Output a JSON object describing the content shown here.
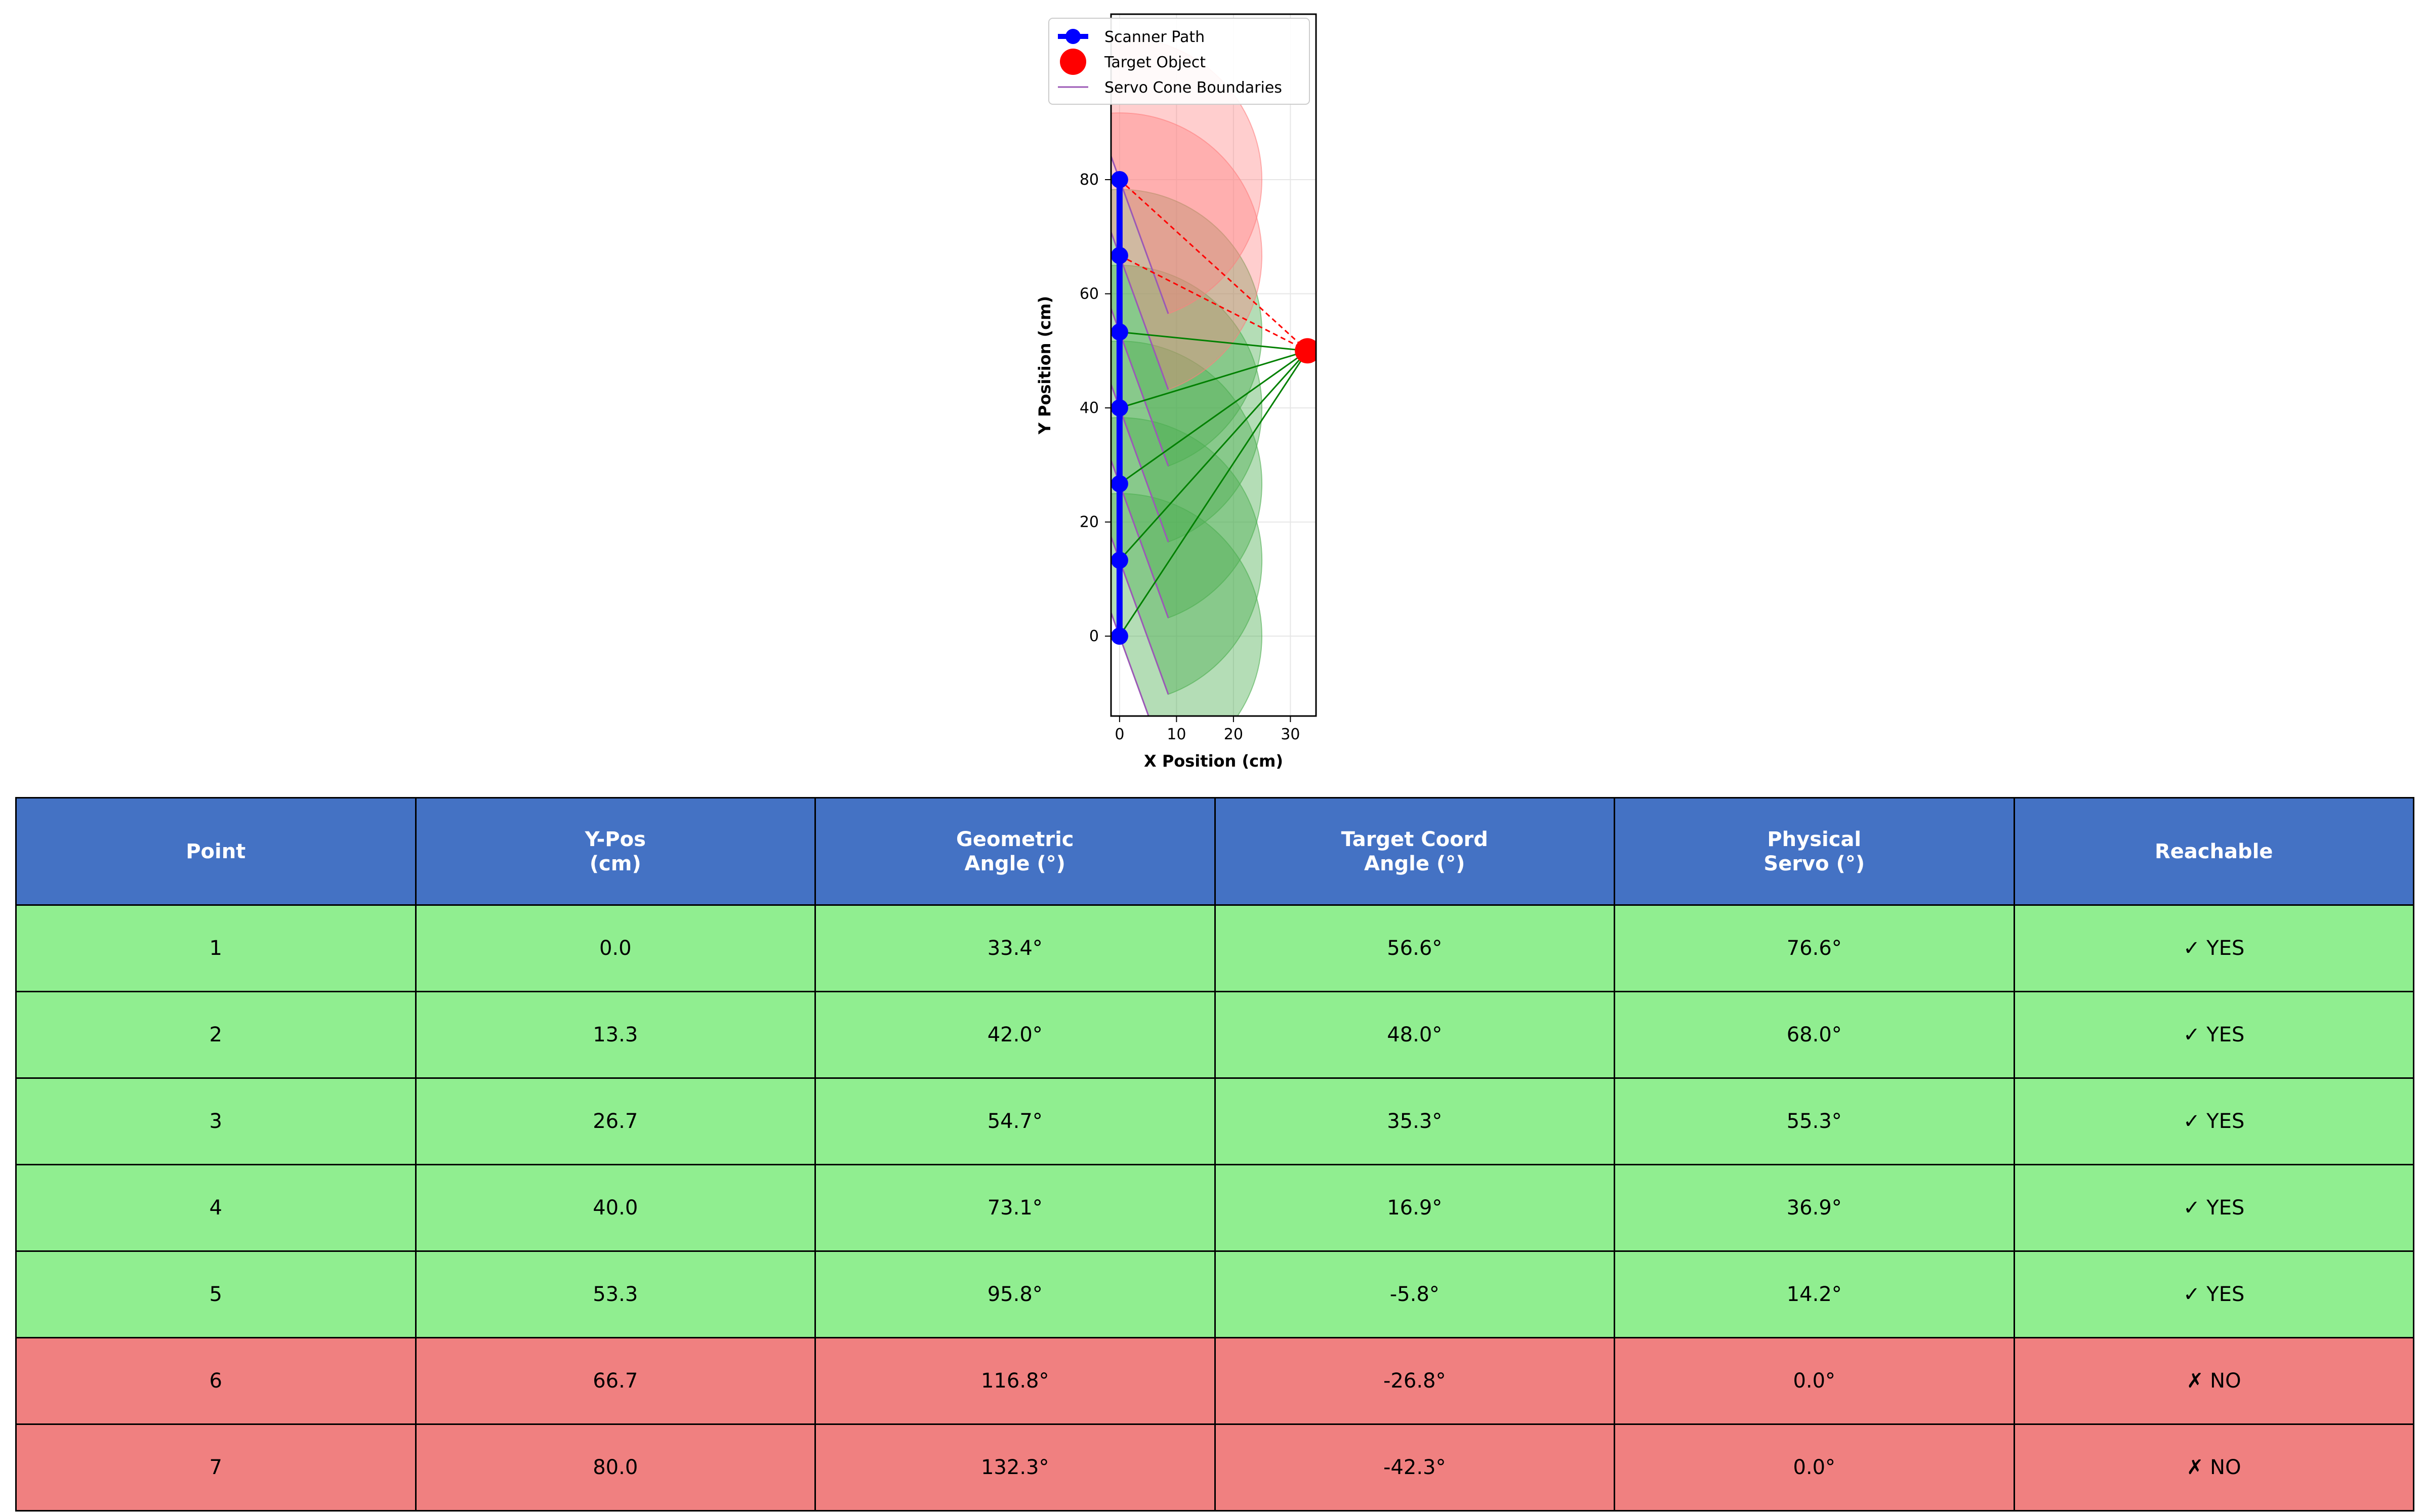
{
  "chart_data": {
    "type": "scatter",
    "xlabel": "X Position (cm)",
    "ylabel": "Y Position (cm)",
    "xlim": [
      -1.5,
      34.5
    ],
    "ylim": [
      -14,
      109
    ],
    "xticks": [
      0,
      10,
      20,
      30
    ],
    "yticks": [
      0,
      20,
      40,
      60,
      80
    ],
    "grid": true,
    "legend": {
      "placement": "top-center",
      "entries": [
        "Scanner Path",
        "Target Object",
        "Servo Cone Boundaries"
      ]
    },
    "scanner_path": {
      "name": "Scanner Path",
      "color": "#0000ff",
      "x": [
        0,
        0,
        0,
        0,
        0,
        0,
        0
      ],
      "y": [
        0.0,
        13.3,
        26.7,
        40.0,
        53.3,
        66.7,
        80.0
      ]
    },
    "target": {
      "name": "Target Object",
      "x": 33,
      "y": 50,
      "color": "#ff0000"
    },
    "cones": {
      "name": "Servo Cone Boundaries",
      "boundary_color": "#9b59b6",
      "reachable_color": "#4caf50",
      "unreachable_color": "#ff7f7f",
      "radius_cm": 25,
      "servo_range_deg": [
        0,
        180
      ],
      "servo_offset_deg": 20
    },
    "lines_to_target": {
      "reachable_color": "#008000",
      "unreachable_color": "#ff0000"
    }
  },
  "table": {
    "headers": [
      "Point",
      "Y-Pos\n(cm)",
      "Geometric\nAngle (°)",
      "Target Coord\nAngle (°)",
      "Physical\nServo (°)",
      "Reachable"
    ],
    "rows": [
      {
        "cells": [
          "1",
          "0.0",
          "33.4°",
          "56.6°",
          "76.6°",
          "✓ YES"
        ],
        "reachable": true
      },
      {
        "cells": [
          "2",
          "13.3",
          "42.0°",
          "48.0°",
          "68.0°",
          "✓ YES"
        ],
        "reachable": true
      },
      {
        "cells": [
          "3",
          "26.7",
          "54.7°",
          "35.3°",
          "55.3°",
          "✓ YES"
        ],
        "reachable": true
      },
      {
        "cells": [
          "4",
          "40.0",
          "73.1°",
          "16.9°",
          "36.9°",
          "✓ YES"
        ],
        "reachable": true
      },
      {
        "cells": [
          "5",
          "53.3",
          "95.8°",
          "-5.8°",
          "14.2°",
          "✓ YES"
        ],
        "reachable": true
      },
      {
        "cells": [
          "6",
          "66.7",
          "116.8°",
          "-26.8°",
          "0.0°",
          "✗ NO"
        ],
        "reachable": false
      },
      {
        "cells": [
          "7",
          "80.0",
          "132.3°",
          "-42.3°",
          "0.0°",
          "✗ NO"
        ],
        "reachable": false
      }
    ],
    "colors": {
      "header_bg": "#4472c4",
      "reachable_bg": "#90ee90",
      "unreachable_bg": "#f08080"
    }
  }
}
